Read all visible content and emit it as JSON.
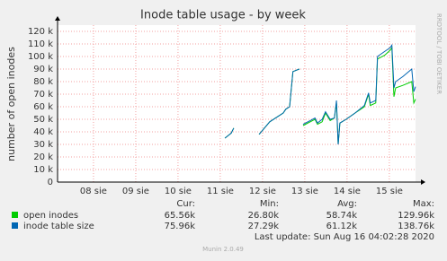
{
  "chart_data": {
    "type": "line",
    "title": "Inode table usage - by week",
    "ylabel": "number of open inodes",
    "watermark": "RRDTOOL / TOBI OETIKER",
    "xlim": [
      7.7,
      16.17
    ],
    "xticks": [
      {
        "value": 8.55,
        "label": "08 sie"
      },
      {
        "value": 9.55,
        "label": "09 sie"
      },
      {
        "value": 10.55,
        "label": "10 sie"
      },
      {
        "value": 11.55,
        "label": "11 sie"
      },
      {
        "value": 12.55,
        "label": "12 sie"
      },
      {
        "value": 13.55,
        "label": "13 sie"
      },
      {
        "value": 14.55,
        "label": "14 sie"
      },
      {
        "value": 15.55,
        "label": "15 sie"
      }
    ],
    "ylim": [
      0,
      125000
    ],
    "yticks": [
      0,
      {
        "value": 10000,
        "label": "10 k"
      },
      {
        "value": 20000,
        "label": "20 k"
      },
      {
        "value": 30000,
        "label": "30 k"
      },
      {
        "value": 40000,
        "label": "40 k"
      },
      {
        "value": 50000,
        "label": "50 k"
      },
      {
        "value": 60000,
        "label": "60 k"
      },
      {
        "value": 70000,
        "label": "70 k"
      },
      {
        "value": 80000,
        "label": "80 k"
      },
      {
        "value": 90000,
        "label": "90 k"
      },
      {
        "value": 100000,
        "label": "100 k"
      },
      {
        "value": 110000,
        "label": "110 k"
      },
      {
        "value": 120000,
        "label": "120 k"
      }
    ],
    "grid": true,
    "x": [
      11.66,
      11.81,
      11.87,
      12.2,
      12.47,
      12.72,
      13.04,
      13.1,
      13.19,
      13.27,
      13.42,
      13.46,
      13.51,
      13.68,
      13.79,
      13.85,
      13.96,
      14.04,
      14.15,
      14.25,
      14.3,
      14.34,
      14.38,
      14.53,
      14.74,
      14.96,
      15.06,
      15.1,
      15.23,
      15.27,
      15.44,
      15.57,
      15.61,
      15.66,
      15.7,
      15.87,
      16.08,
      16.13,
      16.17
    ],
    "series": [
      {
        "name": "open inodes",
        "color": "#00cc00",
        "values": [
          35000,
          39000,
          43000,
          null,
          38000,
          48000,
          55000,
          58000,
          60000,
          88000,
          90000,
          null,
          45000,
          48000,
          50000,
          46000,
          48000,
          55000,
          49000,
          51000,
          63000,
          30000,
          47000,
          50000,
          55000,
          60000,
          70000,
          61000,
          63000,
          98000,
          101000,
          105000,
          107000,
          68000,
          75000,
          77000,
          80000,
          63000,
          66000
        ],
        "stats": [
          "65.56k",
          "26.80k",
          "58.74k",
          "129.96k"
        ]
      },
      {
        "name": "inode table size",
        "color": "#0066b3",
        "values": [
          35000,
          39000,
          43000,
          null,
          38000,
          48000,
          55000,
          58000,
          60000,
          88000,
          90000,
          null,
          46000,
          49000,
          51000,
          47000,
          50000,
          56000,
          50000,
          51000,
          65000,
          30000,
          47000,
          50000,
          55000,
          61000,
          71000,
          63000,
          65000,
          100000,
          104000,
          107000,
          109000,
          75000,
          80000,
          84000,
          90000,
          72000,
          76000
        ],
        "stats": [
          "75.96k",
          "27.29k",
          "61.12k",
          "138.76k"
        ]
      }
    ],
    "stat_headers": [
      "Cur:",
      "Min:",
      "Avg:",
      "Max:"
    ],
    "last_update": "Last update: Sun Aug 16 04:02:28 2020",
    "footer": "Munin 2.0.49"
  }
}
